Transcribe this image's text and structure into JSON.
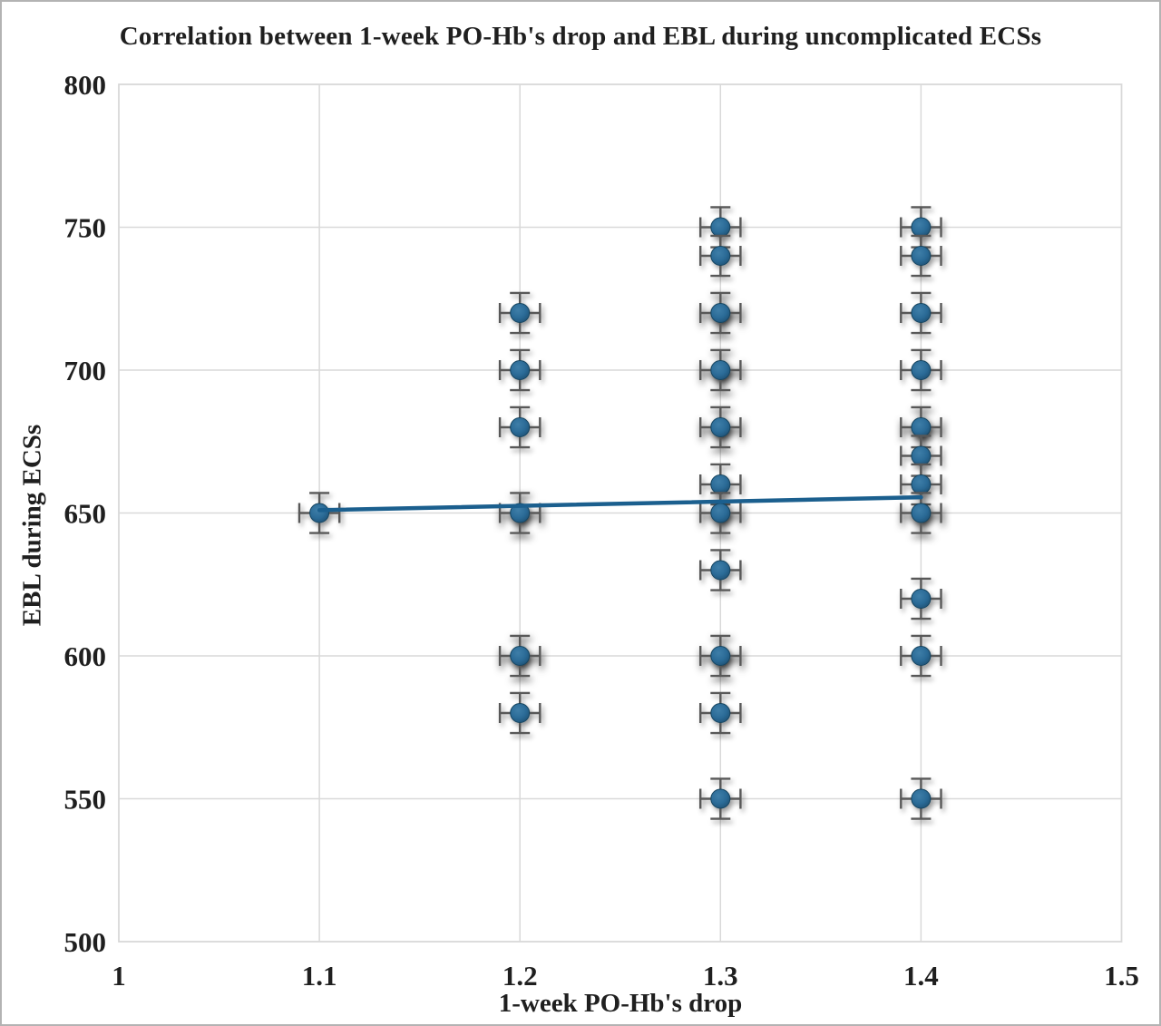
{
  "chart_data": {
    "type": "scatter",
    "title": "Correlation between 1-week PO-Hb's drop and EBL during uncomplicated ECSs",
    "xlabel": "1-week PO-Hb's drop",
    "ylabel": "EBL during ECSs",
    "xlim": [
      1,
      1.5
    ],
    "ylim": [
      500,
      800
    ],
    "x_ticks": [
      "1",
      "1.1",
      "1.2",
      "1.3",
      "1.4",
      "1.5"
    ],
    "y_ticks": [
      "800",
      "750",
      "700",
      "650",
      "600",
      "550",
      "500"
    ],
    "grid": true,
    "legend": "none",
    "error_bars": {
      "x_plus_minus": 0.01,
      "y_plus_minus": 7
    },
    "points": [
      {
        "x": 1.1,
        "y": 650,
        "overlap": false
      },
      {
        "x": 1.2,
        "y": 720,
        "overlap": false
      },
      {
        "x": 1.2,
        "y": 700,
        "overlap": false
      },
      {
        "x": 1.2,
        "y": 680,
        "overlap": false
      },
      {
        "x": 1.2,
        "y": 650,
        "overlap": true
      },
      {
        "x": 1.2,
        "y": 600,
        "overlap": true
      },
      {
        "x": 1.2,
        "y": 580,
        "overlap": false
      },
      {
        "x": 1.3,
        "y": 750,
        "overlap": false
      },
      {
        "x": 1.3,
        "y": 740,
        "overlap": false
      },
      {
        "x": 1.3,
        "y": 720,
        "overlap": true
      },
      {
        "x": 1.3,
        "y": 700,
        "overlap": true
      },
      {
        "x": 1.3,
        "y": 680,
        "overlap": true
      },
      {
        "x": 1.3,
        "y": 660,
        "overlap": false
      },
      {
        "x": 1.3,
        "y": 650,
        "overlap": true
      },
      {
        "x": 1.3,
        "y": 630,
        "overlap": false
      },
      {
        "x": 1.3,
        "y": 600,
        "overlap": true
      },
      {
        "x": 1.3,
        "y": 580,
        "overlap": false
      },
      {
        "x": 1.3,
        "y": 550,
        "overlap": false
      },
      {
        "x": 1.4,
        "y": 750,
        "overlap": false
      },
      {
        "x": 1.4,
        "y": 740,
        "overlap": false
      },
      {
        "x": 1.4,
        "y": 720,
        "overlap": false
      },
      {
        "x": 1.4,
        "y": 700,
        "overlap": false
      },
      {
        "x": 1.4,
        "y": 680,
        "overlap": true
      },
      {
        "x": 1.4,
        "y": 670,
        "overlap": false
      },
      {
        "x": 1.4,
        "y": 660,
        "overlap": false
      },
      {
        "x": 1.4,
        "y": 650,
        "overlap": true
      },
      {
        "x": 1.4,
        "y": 620,
        "overlap": false
      },
      {
        "x": 1.4,
        "y": 600,
        "overlap": false
      },
      {
        "x": 1.4,
        "y": 550,
        "overlap": false
      }
    ],
    "trendline": {
      "x1": 1.1,
      "y1": 651,
      "x2": 1.4,
      "y2": 655.5
    },
    "colors": {
      "marker": "#2b6b97",
      "marker_light": "#3e7ea8",
      "marker_dark": "#1e4f72",
      "marker_edge": "#17445f",
      "error_bar": "#595959",
      "trendline": "#1b5f8e",
      "gridline": "#d9d9d9",
      "text": "#1f1f1f"
    }
  }
}
